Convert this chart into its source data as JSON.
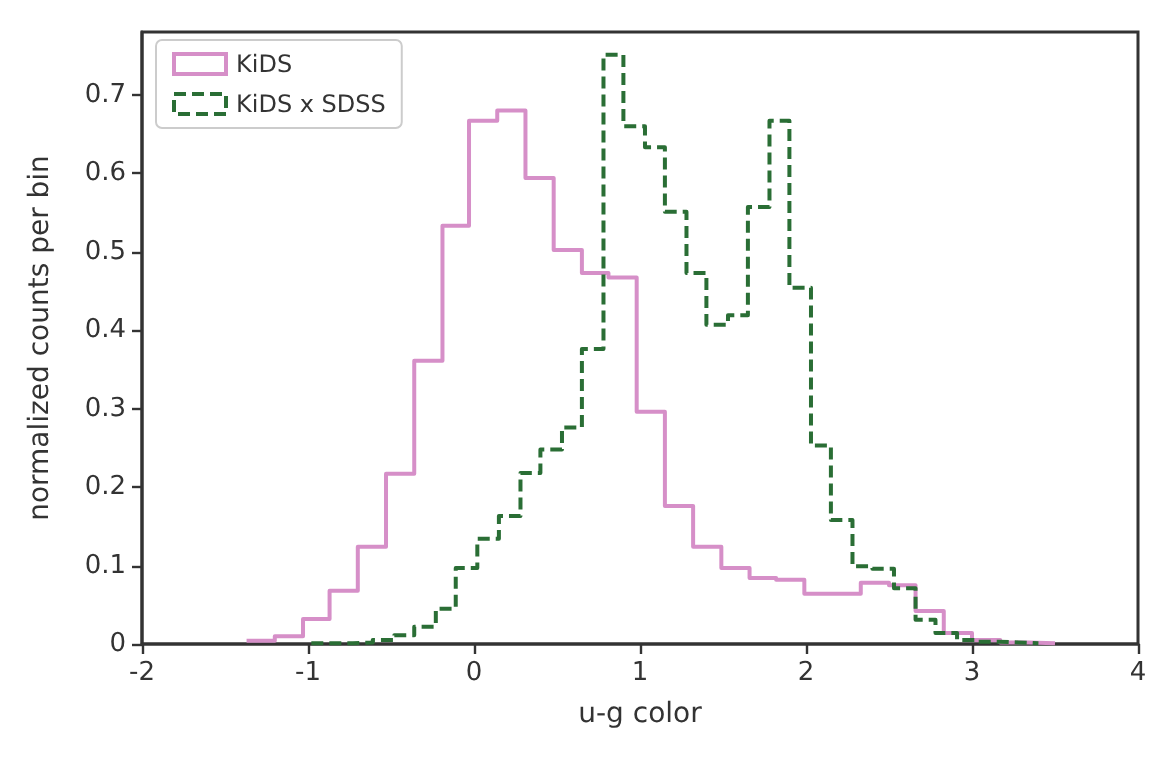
{
  "chart_data": {
    "type": "step",
    "xlabel": "u-g color",
    "ylabel": "normalized counts per bin",
    "xlim": [
      -2,
      4
    ],
    "xticks": [
      -2,
      -1,
      0,
      1,
      2,
      3,
      4
    ],
    "ylim": [
      0,
      0.78
    ],
    "yticks": [
      0,
      0.1,
      0.2,
      0.3,
      0.4,
      0.5,
      0.6,
      0.7
    ],
    "grid": false,
    "legend": "top left",
    "series": [
      {
        "name": "KiDS",
        "color": "#d68fc8",
        "line_style": "solid",
        "x": [
          -1.37,
          -1.2,
          -1.03,
          -0.87,
          -0.7,
          -0.53,
          -0.36,
          -0.19,
          -0.03,
          0.14,
          0.31,
          0.48,
          0.65,
          0.81,
          0.98,
          1.15,
          1.32,
          1.49,
          1.66,
          1.82,
          1.99,
          2.16,
          2.33,
          2.5,
          2.66,
          2.83,
          3.0,
          3.17,
          3.34,
          3.5
        ],
        "values": [
          0.004,
          0.01,
          0.032,
          0.068,
          0.124,
          0.217,
          0.361,
          0.533,
          0.667,
          0.68,
          0.594,
          0.502,
          0.473,
          0.467,
          0.296,
          0.176,
          0.124,
          0.097,
          0.084,
          0.082,
          0.064,
          0.064,
          0.078,
          0.075,
          0.042,
          0.014,
          0.005,
          0.002,
          0.001,
          0
        ]
      },
      {
        "name": "KiDS x SDSS",
        "color": "#2a6e35",
        "line_style": "dashed",
        "x": [
          -0.98,
          -0.86,
          -0.73,
          -0.61,
          -0.48,
          -0.36,
          -0.23,
          -0.11,
          0.02,
          0.15,
          0.28,
          0.4,
          0.53,
          0.65,
          0.78,
          0.9,
          1.03,
          1.15,
          1.28,
          1.4,
          1.53,
          1.65,
          1.78,
          1.9,
          2.03,
          2.15,
          2.28,
          2.4,
          2.53,
          2.66,
          2.78,
          2.91,
          3.03,
          3.16,
          3.28,
          3.4
        ],
        "values": [
          0.001,
          0.001,
          0.002,
          0.005,
          0.011,
          0.022,
          0.045,
          0.097,
          0.134,
          0.163,
          0.218,
          0.248,
          0.276,
          0.376,
          0.751,
          0.66,
          0.633,
          0.551,
          0.473,
          0.407,
          0.419,
          0.557,
          0.667,
          0.454,
          0.253,
          0.158,
          0.099,
          0.096,
          0.071,
          0.031,
          0.014,
          0.005,
          0.003,
          0.002,
          0.001,
          0
        ]
      }
    ]
  }
}
